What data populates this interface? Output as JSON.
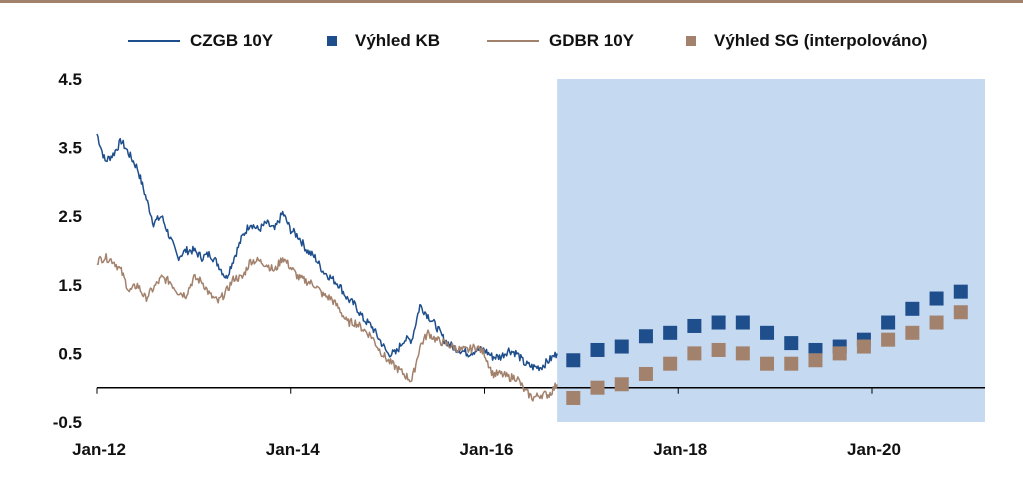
{
  "chart_data": {
    "type": "line",
    "title": "",
    "xlabel": "",
    "ylabel": "",
    "ylim": [
      -0.5,
      4.5
    ],
    "yticks": [
      "4.5",
      "3.5",
      "2.5",
      "1.5",
      "0.5",
      "-0.5"
    ],
    "ytick_values": [
      4.5,
      3.5,
      2.5,
      1.5,
      0.5,
      -0.5
    ],
    "xlim": [
      "2012-01",
      "2021-03"
    ],
    "xticks": [
      "Jan-12",
      "Jan-14",
      "Jan-16",
      "Jan-18",
      "Jan-20"
    ],
    "xtick_values": [
      "2012-01",
      "2014-01",
      "2016-01",
      "2018-01",
      "2020-01"
    ],
    "forecast_region": {
      "from": "2016-10",
      "to": "2021-03",
      "color": "#c5d9f1"
    },
    "legend_position": "top",
    "grid": false,
    "series": [
      {
        "name": "CZGB 10Y",
        "kind": "line",
        "color": "#1f4e8c",
        "points": [
          [
            "2012-01",
            3.7
          ],
          [
            "2012-02",
            3.3
          ],
          [
            "2012-03",
            3.4
          ],
          [
            "2012-04",
            3.6
          ],
          [
            "2012-05",
            3.4
          ],
          [
            "2012-06",
            3.2
          ],
          [
            "2012-07",
            2.8
          ],
          [
            "2012-08",
            2.4
          ],
          [
            "2012-09",
            2.5
          ],
          [
            "2012-10",
            2.2
          ],
          [
            "2012-11",
            1.9
          ],
          [
            "2012-12",
            2.0
          ],
          [
            "2013-01",
            2.0
          ],
          [
            "2013-02",
            1.9
          ],
          [
            "2013-03",
            1.95
          ],
          [
            "2013-04",
            1.8
          ],
          [
            "2013-05",
            1.6
          ],
          [
            "2013-06",
            1.9
          ],
          [
            "2013-07",
            2.2
          ],
          [
            "2013-08",
            2.4
          ],
          [
            "2013-09",
            2.3
          ],
          [
            "2013-10",
            2.4
          ],
          [
            "2013-11",
            2.3
          ],
          [
            "2013-12",
            2.55
          ],
          [
            "2014-01",
            2.3
          ],
          [
            "2014-02",
            2.2
          ],
          [
            "2014-03",
            2.0
          ],
          [
            "2014-04",
            1.9
          ],
          [
            "2014-05",
            1.7
          ],
          [
            "2014-06",
            1.6
          ],
          [
            "2014-07",
            1.5
          ],
          [
            "2014-08",
            1.3
          ],
          [
            "2014-09",
            1.2
          ],
          [
            "2014-10",
            1.0
          ],
          [
            "2014-11",
            0.9
          ],
          [
            "2014-12",
            0.7
          ],
          [
            "2015-01",
            0.5
          ],
          [
            "2015-02",
            0.5
          ],
          [
            "2015-03",
            0.7
          ],
          [
            "2015-04",
            0.7
          ],
          [
            "2015-05",
            1.2
          ],
          [
            "2015-06",
            1.05
          ],
          [
            "2015-07",
            0.9
          ],
          [
            "2015-08",
            0.7
          ],
          [
            "2015-09",
            0.6
          ],
          [
            "2015-10",
            0.55
          ],
          [
            "2015-11",
            0.5
          ],
          [
            "2015-12",
            0.55
          ],
          [
            "2016-01",
            0.55
          ],
          [
            "2016-02",
            0.45
          ],
          [
            "2016-03",
            0.45
          ],
          [
            "2016-04",
            0.55
          ],
          [
            "2016-05",
            0.5
          ],
          [
            "2016-06",
            0.35
          ],
          [
            "2016-07",
            0.3
          ],
          [
            "2016-08",
            0.3
          ],
          [
            "2016-09",
            0.4
          ],
          [
            "2016-10",
            0.5
          ]
        ]
      },
      {
        "name": "Výhled KB",
        "kind": "marker",
        "color": "#1f4e8c",
        "points": [
          [
            "2016-12",
            0.4
          ],
          [
            "2017-03",
            0.55
          ],
          [
            "2017-06",
            0.6
          ],
          [
            "2017-09",
            0.75
          ],
          [
            "2017-12",
            0.8
          ],
          [
            "2018-03",
            0.9
          ],
          [
            "2018-06",
            0.95
          ],
          [
            "2018-09",
            0.95
          ],
          [
            "2018-12",
            0.8
          ],
          [
            "2019-03",
            0.65
          ],
          [
            "2019-06",
            0.55
          ],
          [
            "2019-09",
            0.6
          ],
          [
            "2019-12",
            0.7
          ],
          [
            "2020-03",
            0.95
          ],
          [
            "2020-06",
            1.15
          ],
          [
            "2020-09",
            1.3
          ],
          [
            "2020-12",
            1.4
          ]
        ]
      },
      {
        "name": "GDBR 10Y",
        "kind": "line",
        "color": "#a3826d",
        "points": [
          [
            "2012-01",
            1.85
          ],
          [
            "2012-02",
            1.9
          ],
          [
            "2012-03",
            1.85
          ],
          [
            "2012-04",
            1.7
          ],
          [
            "2012-05",
            1.4
          ],
          [
            "2012-06",
            1.5
          ],
          [
            "2012-07",
            1.3
          ],
          [
            "2012-08",
            1.45
          ],
          [
            "2012-09",
            1.6
          ],
          [
            "2012-10",
            1.55
          ],
          [
            "2012-11",
            1.4
          ],
          [
            "2012-12",
            1.35
          ],
          [
            "2013-01",
            1.6
          ],
          [
            "2013-02",
            1.55
          ],
          [
            "2013-03",
            1.35
          ],
          [
            "2013-04",
            1.25
          ],
          [
            "2013-05",
            1.4
          ],
          [
            "2013-06",
            1.6
          ],
          [
            "2013-07",
            1.6
          ],
          [
            "2013-08",
            1.85
          ],
          [
            "2013-09",
            1.85
          ],
          [
            "2013-10",
            1.8
          ],
          [
            "2013-11",
            1.7
          ],
          [
            "2013-12",
            1.9
          ],
          [
            "2014-01",
            1.75
          ],
          [
            "2014-02",
            1.6
          ],
          [
            "2014-03",
            1.55
          ],
          [
            "2014-04",
            1.5
          ],
          [
            "2014-05",
            1.35
          ],
          [
            "2014-06",
            1.3
          ],
          [
            "2014-07",
            1.15
          ],
          [
            "2014-08",
            0.95
          ],
          [
            "2014-09",
            0.95
          ],
          [
            "2014-10",
            0.85
          ],
          [
            "2014-11",
            0.75
          ],
          [
            "2014-12",
            0.55
          ],
          [
            "2015-01",
            0.4
          ],
          [
            "2015-02",
            0.3
          ],
          [
            "2015-03",
            0.2
          ],
          [
            "2015-04",
            0.1
          ],
          [
            "2015-05",
            0.6
          ],
          [
            "2015-06",
            0.8
          ],
          [
            "2015-07",
            0.7
          ],
          [
            "2015-08",
            0.65
          ],
          [
            "2015-09",
            0.6
          ],
          [
            "2015-10",
            0.55
          ],
          [
            "2015-11",
            0.55
          ],
          [
            "2015-12",
            0.6
          ],
          [
            "2016-01",
            0.5
          ],
          [
            "2016-02",
            0.2
          ],
          [
            "2016-03",
            0.2
          ],
          [
            "2016-04",
            0.15
          ],
          [
            "2016-05",
            0.15
          ],
          [
            "2016-06",
            -0.05
          ],
          [
            "2016-07",
            -0.15
          ],
          [
            "2016-08",
            -0.1
          ],
          [
            "2016-09",
            -0.1
          ],
          [
            "2016-10",
            0.05
          ]
        ]
      },
      {
        "name": "Výhled SG (interpolováno)",
        "kind": "marker",
        "color": "#a3826d",
        "points": [
          [
            "2016-12",
            -0.15
          ],
          [
            "2017-03",
            0.0
          ],
          [
            "2017-06",
            0.05
          ],
          [
            "2017-09",
            0.2
          ],
          [
            "2017-12",
            0.35
          ],
          [
            "2018-03",
            0.5
          ],
          [
            "2018-06",
            0.55
          ],
          [
            "2018-09",
            0.5
          ],
          [
            "2018-12",
            0.35
          ],
          [
            "2019-03",
            0.35
          ],
          [
            "2019-06",
            0.4
          ],
          [
            "2019-09",
            0.5
          ],
          [
            "2019-12",
            0.6
          ],
          [
            "2020-03",
            0.7
          ],
          [
            "2020-06",
            0.8
          ],
          [
            "2020-09",
            0.95
          ],
          [
            "2020-12",
            1.1
          ]
        ]
      }
    ]
  }
}
